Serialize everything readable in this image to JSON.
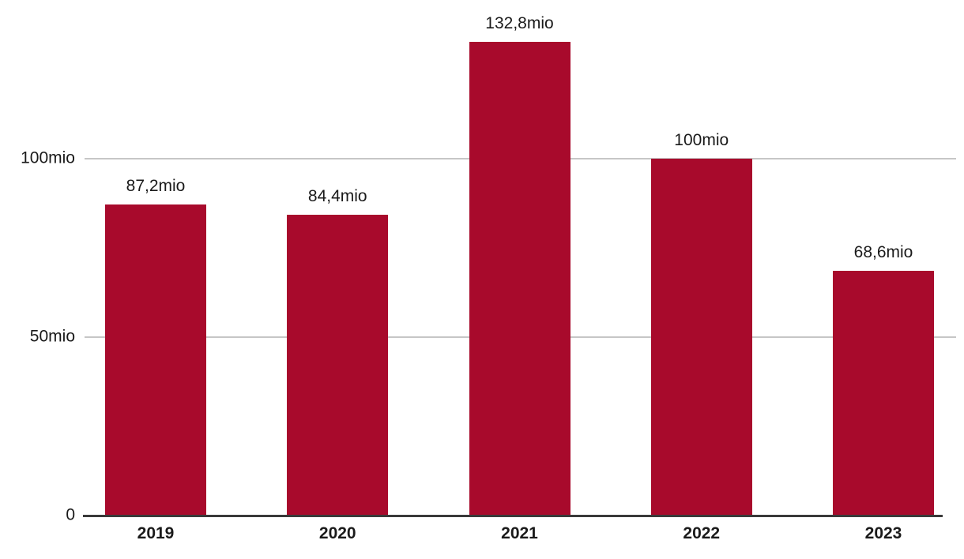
{
  "chart_data": {
    "type": "bar",
    "categories": [
      "2019",
      "2020",
      "2021",
      "2022",
      "2023"
    ],
    "values": [
      87.2,
      84.4,
      132.8,
      100,
      68.6
    ],
    "value_labels": [
      "87,2mio",
      "84,4mio",
      "132,8mio",
      "100mio",
      "68,6mio"
    ],
    "title": "",
    "xlabel": "",
    "ylabel": "",
    "ylim": [
      0,
      140
    ],
    "yticks": [
      {
        "value": 0,
        "label": "0"
      },
      {
        "value": 50,
        "label": "50mio"
      },
      {
        "value": 100,
        "label": "100mio"
      }
    ],
    "grid": "horizontal-only",
    "legend": "none",
    "colors": {
      "bar": "#A80A2C",
      "gridline": "#C6C6C6",
      "axis": "#3A3A3A",
      "text": "#1A1A1A"
    }
  }
}
